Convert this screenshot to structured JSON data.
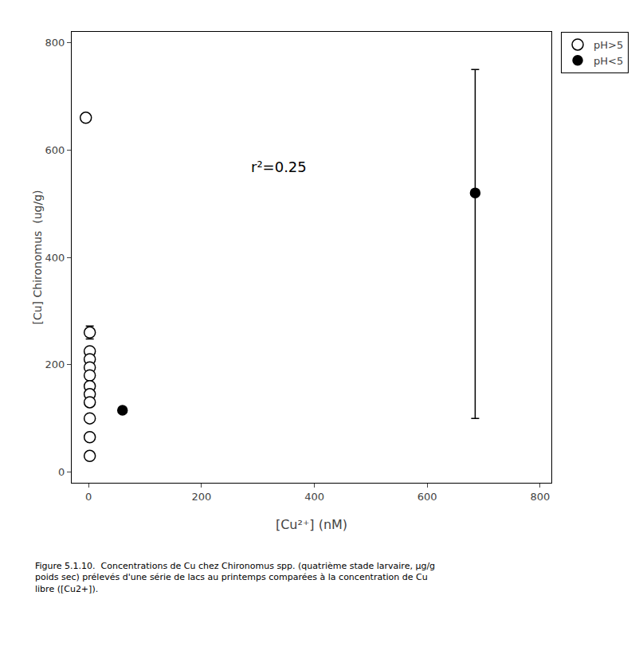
{
  "chart_data": {
    "type": "scatter",
    "xlabel": "[Cu²⁺] (nM)",
    "ylabel": "[Cu] Chironomus  (ug/g)",
    "xlim": [
      -30,
      820
    ],
    "ylim": [
      -20,
      820
    ],
    "xticks": [
      0,
      200,
      400,
      600,
      800
    ],
    "yticks": [
      0,
      200,
      400,
      600,
      800
    ],
    "grid": false,
    "legend": "upper right",
    "annotations": [
      "r²=0.25"
    ],
    "caption": [
      "Figure 5.1.10.  Concentrations de Cu chez Chironomus spp. (quatrième stade larvaire, μg/g",
      "poids sec) prélevés d'une série de lacs au printemps comparées à la concentration de Cu",
      "libre ([Cu2+])."
    ],
    "series": [
      {
        "name": "pH>5",
        "marker": "open",
        "color": "black",
        "x": [
          -5,
          2,
          2,
          2,
          2,
          2,
          2,
          2,
          2,
          2,
          2,
          2
        ],
        "y": [
          660,
          260,
          225,
          210,
          195,
          180,
          160,
          145,
          130,
          100,
          65,
          30
        ],
        "yerr_minus": [
          null,
          12,
          null,
          null,
          null,
          null,
          null,
          null,
          null,
          null,
          null,
          null
        ],
        "yerr_plus": [
          null,
          12,
          null,
          null,
          null,
          null,
          null,
          null,
          null,
          null,
          null,
          null
        ]
      },
      {
        "name": "pH<5",
        "marker": "filled",
        "color": "black",
        "x": [
          60,
          685
        ],
        "y": [
          115,
          520
        ],
        "yerr_minus": [
          null,
          420
        ],
        "yerr_plus": [
          null,
          230
        ]
      }
    ]
  }
}
